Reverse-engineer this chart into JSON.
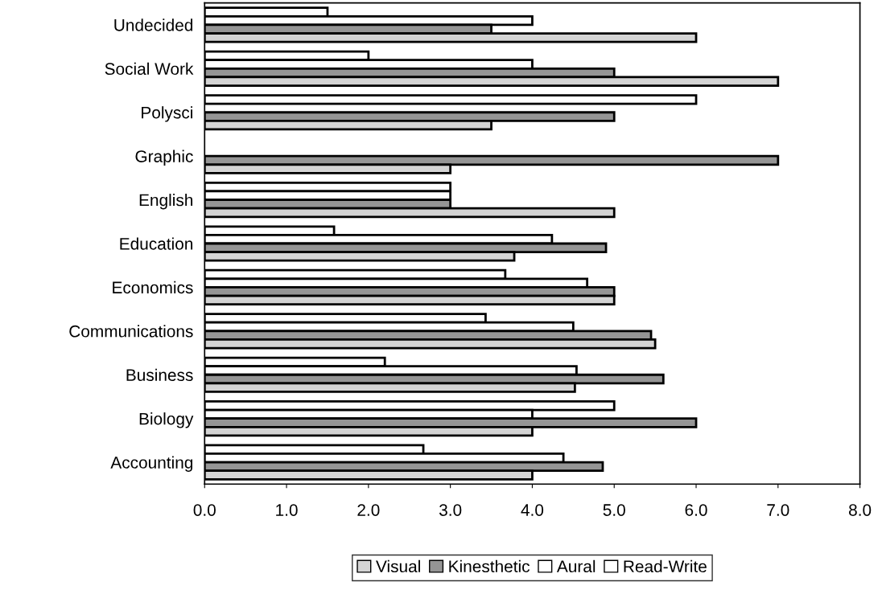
{
  "chart_data": {
    "type": "bar",
    "orientation": "horizontal",
    "categories": [
      "Undecided",
      "Social Work",
      "Polysci",
      "Graphic",
      "English",
      "Education",
      "Economics",
      "Communications",
      "Business",
      "Biology",
      "Accounting"
    ],
    "series": [
      {
        "name": "Read-Write",
        "color": "#ffffff",
        "values": [
          1.5,
          2.0,
          6.0,
          null,
          3.0,
          1.58,
          3.67,
          3.43,
          2.2,
          5.0,
          2.67
        ]
      },
      {
        "name": "Aural",
        "color": "#ffffff",
        "values": [
          4.0,
          4.0,
          null,
          null,
          3.0,
          4.24,
          4.67,
          4.5,
          4.54,
          4.0,
          4.38
        ]
      },
      {
        "name": "Kinesthetic",
        "color": "#959595",
        "values": [
          3.5,
          5.0,
          5.0,
          7.0,
          3.0,
          4.9,
          5.0,
          5.45,
          5.6,
          6.0,
          4.86
        ]
      },
      {
        "name": "Visual",
        "color": "#d4d4d4",
        "values": [
          6.0,
          7.0,
          3.5,
          3.0,
          5.0,
          3.78,
          5.0,
          5.5,
          4.52,
          4.0,
          4.0
        ]
      }
    ],
    "xlim": [
      0,
      8
    ],
    "xticks": [
      {
        "value": 0,
        "label": "0.0"
      },
      {
        "value": 1,
        "label": "1.0"
      },
      {
        "value": 2,
        "label": "2.0"
      },
      {
        "value": 3,
        "label": "3.0"
      },
      {
        "value": 4,
        "label": "4.0"
      },
      {
        "value": 5,
        "label": "5.0"
      },
      {
        "value": 6,
        "label": "6.0"
      },
      {
        "value": 7,
        "label": "7.0"
      },
      {
        "value": 8,
        "label": "8.0"
      }
    ],
    "legend": "bottom",
    "grid": false
  }
}
